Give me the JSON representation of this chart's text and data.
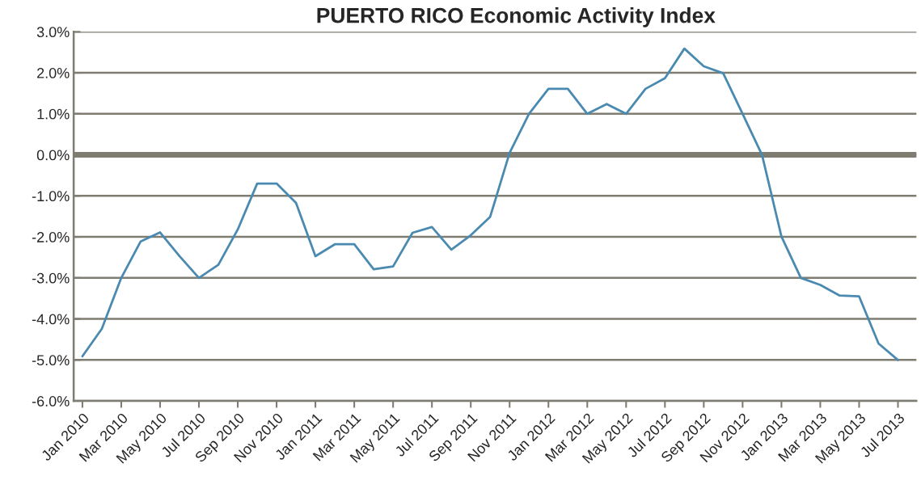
{
  "chart_data": {
    "type": "line",
    "title": "PUERTO RICO Economic Activity Index",
    "categories": [
      "Jan 2010",
      null,
      "Mar 2010",
      null,
      "May 2010",
      null,
      "Jul 2010",
      null,
      "Sep 2010",
      null,
      "Nov 2010",
      null,
      "Jan 2011",
      null,
      "Mar 2011",
      null,
      "May 2011",
      null,
      "Jul 2011",
      null,
      "Sep 2011",
      null,
      "Nov 2011",
      null,
      "Jan 2012",
      null,
      "Mar 2012",
      null,
      "May 2012",
      null,
      "Jul 2012",
      null,
      "Sep 2012",
      null,
      "Nov 2012",
      null,
      "Jan 2013",
      null,
      "Mar 2013",
      null,
      "May 2013",
      null,
      "Jul 2013"
    ],
    "series": [
      {
        "color": "#4a8ab0",
        "values": [
          -4.91,
          -4.24,
          -3.0,
          -2.11,
          -1.89,
          -2.47,
          -3.0,
          -2.68,
          -1.82,
          -0.7,
          -0.7,
          -1.17,
          -2.47,
          -2.18,
          -2.18,
          -2.79,
          -2.72,
          -1.9,
          -1.76,
          -2.31,
          -1.96,
          -1.51,
          0.05,
          1.0,
          1.61,
          1.61,
          1.0,
          1.24,
          1.0,
          1.61,
          1.87,
          2.59,
          2.16,
          1.99,
          1.0,
          0.0,
          -1.99,
          -3.0,
          -3.17,
          -3.43,
          -3.45,
          -4.6,
          -5.0
        ]
      }
    ],
    "ylim": [
      -6,
      3
    ],
    "yticks": [
      {
        "value": -6,
        "label": "-6.0%"
      },
      {
        "value": -5,
        "label": "-5.0%"
      },
      {
        "value": -4,
        "label": "-4.0%"
      },
      {
        "value": -3,
        "label": "-3.0%"
      },
      {
        "value": -2,
        "label": "-2.0%"
      },
      {
        "value": -1,
        "label": "-1.0%"
      },
      {
        "value": 0,
        "label": "0.0%"
      },
      {
        "value": 1,
        "label": "1.0%"
      },
      {
        "value": 2,
        "label": "2.0%"
      },
      {
        "value": 3,
        "label": "3.0%"
      }
    ],
    "ref_lines": [
      {
        "axis": "y",
        "value": 0,
        "color": "#7f7d72"
      }
    ],
    "grid": "y",
    "marker": "none",
    "line_style": "solid"
  }
}
